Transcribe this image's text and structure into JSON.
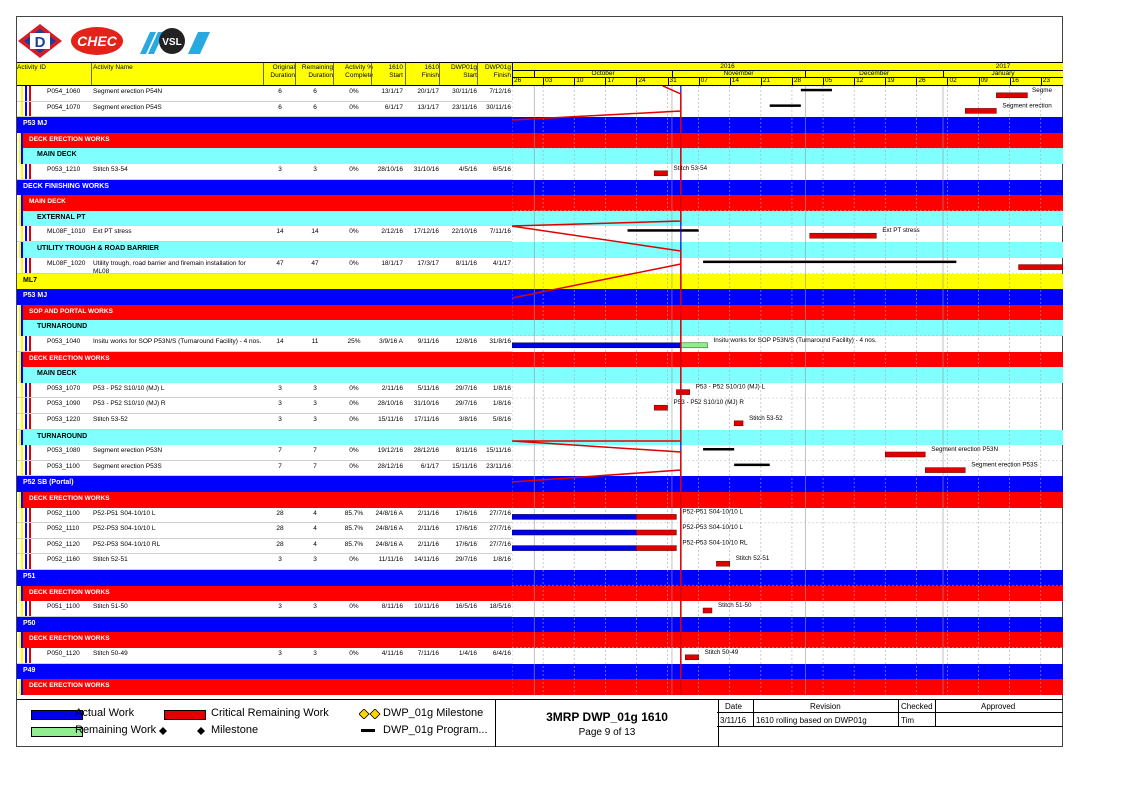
{
  "header": {
    "columns": [
      {
        "key": "id",
        "lines": [
          "Activity ID"
        ]
      },
      {
        "key": "name",
        "lines": [
          "Activity Name"
        ]
      },
      {
        "key": "od",
        "lines": [
          "Original",
          "Duration"
        ]
      },
      {
        "key": "rd",
        "lines": [
          "Remaining",
          "Duration"
        ]
      },
      {
        "key": "pc",
        "lines": [
          "Activity %",
          "Complete"
        ]
      },
      {
        "key": "s",
        "lines": [
          "1610",
          "Start"
        ]
      },
      {
        "key": "f",
        "lines": [
          "1610",
          "Finish"
        ]
      },
      {
        "key": "ds",
        "lines": [
          "DWP01g",
          "Start"
        ]
      },
      {
        "key": "df",
        "lines": [
          "DWP01g",
          "Finish"
        ]
      }
    ],
    "years": [
      "2016",
      "2017"
    ],
    "months": [
      "October",
      "November",
      "December",
      "January"
    ],
    "days": [
      "26",
      "03",
      "10",
      "17",
      "24",
      "31",
      "07",
      "14",
      "21",
      "28",
      "05",
      "12",
      "19",
      "26",
      "02",
      "09",
      "16",
      "23"
    ]
  },
  "rows": [
    {
      "type": "act",
      "id": "P054_1060",
      "name": "Segment erection P54N",
      "od": "6",
      "rd": "6",
      "pc": "0%",
      "s": "13/1/17",
      "f": "20/1/17",
      "ds": "30/11/16",
      "df": "7/12/16"
    },
    {
      "type": "act",
      "id": "P054_1070",
      "name": "Segment erection P54S",
      "od": "6",
      "rd": "6",
      "pc": "0%",
      "s": "6/1/17",
      "f": "13/1/17",
      "ds": "23/11/16",
      "df": "30/11/16"
    },
    {
      "type": "g1",
      "label": "P53 MJ"
    },
    {
      "type": "g2",
      "label": "DECK ERECTION WORKS"
    },
    {
      "type": "g3",
      "label": "MAIN DECK"
    },
    {
      "type": "act",
      "id": "P053_1210",
      "name": "Stitch 53-54",
      "od": "3",
      "rd": "3",
      "pc": "0%",
      "s": "28/10/16",
      "f": "31/10/16",
      "ds": "4/5/16",
      "df": "6/5/16"
    },
    {
      "type": "g1",
      "label": "DECK FINISHING WORKS"
    },
    {
      "type": "g2",
      "label": "MAIN DECK"
    },
    {
      "type": "g3",
      "label": "EXTERNAL PT"
    },
    {
      "type": "act",
      "id": "ML08F_1010",
      "name": "Ext PT stress",
      "od": "14",
      "rd": "14",
      "pc": "0%",
      "s": "2/12/16",
      "f": "17/12/16",
      "ds": "22/10/16",
      "df": "7/11/16"
    },
    {
      "type": "g3",
      "label": "UTILITY TROUGH & ROAD BARRIER"
    },
    {
      "type": "act",
      "id": "ML08F_1020",
      "name": "Utility trough, road barrier and firemain installation for ML08",
      "od": "47",
      "rd": "47",
      "pc": "0%",
      "s": "18/1/17",
      "f": "17/3/17",
      "ds": "8/11/16",
      "df": "4/1/17"
    },
    {
      "type": "g0",
      "label": "ML7"
    },
    {
      "type": "g1",
      "label": "P53 MJ"
    },
    {
      "type": "g2",
      "label": "SOP AND PORTAL WORKS"
    },
    {
      "type": "g3",
      "label": "TURNAROUND"
    },
    {
      "type": "act",
      "id": "P053_1040",
      "name": "Insitu works for SOP P53N/S (Turnaround Facility) - 4 nos.",
      "od": "14",
      "rd": "11",
      "pc": "25%",
      "s": "3/9/16 A",
      "f": "9/11/16",
      "ds": "12/8/16",
      "df": "31/8/16"
    },
    {
      "type": "g2",
      "label": "DECK ERECTION WORKS"
    },
    {
      "type": "g3",
      "label": "MAIN DECK"
    },
    {
      "type": "act",
      "id": "P053_1070",
      "name": "P53 - P52 S10/10 (MJ) L",
      "od": "3",
      "rd": "3",
      "pc": "0%",
      "s": "2/11/16",
      "f": "5/11/16",
      "ds": "29/7/16",
      "df": "1/8/16"
    },
    {
      "type": "act",
      "id": "P053_1090",
      "name": "P53 - P52 S10/10 (MJ) R",
      "od": "3",
      "rd": "3",
      "pc": "0%",
      "s": "28/10/16",
      "f": "31/10/16",
      "ds": "29/7/16",
      "df": "1/8/16"
    },
    {
      "type": "act",
      "id": "P053_1220",
      "name": "Stitch 53-52",
      "od": "3",
      "rd": "3",
      "pc": "0%",
      "s": "15/11/16",
      "f": "17/11/16",
      "ds": "3/8/16",
      "df": "5/8/16"
    },
    {
      "type": "g3",
      "label": "TURNAROUND"
    },
    {
      "type": "act",
      "id": "P053_1080",
      "name": "Segment erection P53N",
      "od": "7",
      "rd": "7",
      "pc": "0%",
      "s": "19/12/16",
      "f": "28/12/16",
      "ds": "8/11/16",
      "df": "15/11/16"
    },
    {
      "type": "act",
      "id": "P053_1100",
      "name": "Segment erection P53S",
      "od": "7",
      "rd": "7",
      "pc": "0%",
      "s": "28/12/16",
      "f": "6/1/17",
      "ds": "15/11/16",
      "df": "23/11/16"
    },
    {
      "type": "g1",
      "label": "P52 SB (Portal)"
    },
    {
      "type": "g2",
      "label": "DECK ERECTION WORKS"
    },
    {
      "type": "act",
      "id": "P052_1100",
      "name": "P52-P51 S04-10/10 L",
      "od": "28",
      "rd": "4",
      "pc": "85.7%",
      "s": "24/8/16 A",
      "f": "2/11/16",
      "ds": "17/6/16",
      "df": "27/7/16"
    },
    {
      "type": "act",
      "id": "P052_1110",
      "name": "P52-P53 S04-10/10 L",
      "od": "28",
      "rd": "4",
      "pc": "85.7%",
      "s": "24/8/16 A",
      "f": "2/11/16",
      "ds": "17/6/16",
      "df": "27/7/16"
    },
    {
      "type": "act",
      "id": "P052_1120",
      "name": "P52-P53 S04-10/10 RL",
      "od": "28",
      "rd": "4",
      "pc": "85.7%",
      "s": "24/8/16 A",
      "f": "2/11/16",
      "ds": "17/6/16",
      "df": "27/7/16"
    },
    {
      "type": "act",
      "id": "P052_1160",
      "name": "Stitch 52-51",
      "od": "3",
      "rd": "3",
      "pc": "0%",
      "s": "11/11/16",
      "f": "14/11/16",
      "ds": "29/7/16",
      "df": "1/8/16"
    },
    {
      "type": "g1",
      "label": "P51"
    },
    {
      "type": "g2",
      "label": "DECK ERECTION WORKS"
    },
    {
      "type": "act",
      "id": "P051_1100",
      "name": "Stitch 51-50",
      "od": "3",
      "rd": "3",
      "pc": "0%",
      "s": "8/11/16",
      "f": "10/11/16",
      "ds": "16/5/16",
      "df": "18/5/16"
    },
    {
      "type": "g1",
      "label": "P50"
    },
    {
      "type": "g2",
      "label": "DECK ERECTION WORKS"
    },
    {
      "type": "act",
      "id": "P050_1120",
      "name": "Stitch 50-49",
      "od": "3",
      "rd": "3",
      "pc": "0%",
      "s": "4/11/16",
      "f": "7/11/16",
      "ds": "1/4/16",
      "df": "6/4/16"
    },
    {
      "type": "g1",
      "label": "P49"
    },
    {
      "type": "g2",
      "label": "DECK ERECTION WORKS"
    }
  ],
  "chart_data": {
    "type": "gantt",
    "data_date": "3/11/16",
    "x_range": [
      "26/9/16",
      "28/1/17"
    ],
    "tasks": [
      {
        "id": "P054_1060",
        "label": "Segme",
        "bars": [
          {
            "kind": "critical",
            "start": "13/1/17",
            "end": "20/1/17"
          },
          {
            "kind": "program",
            "start": "30/11/16",
            "end": "7/12/16"
          }
        ]
      },
      {
        "id": "P054_1070",
        "label": "Segment erection",
        "bars": [
          {
            "kind": "critical",
            "start": "6/1/17",
            "end": "13/1/17"
          },
          {
            "kind": "program",
            "start": "23/11/16",
            "end": "30/11/16"
          }
        ]
      },
      {
        "id": "P053_1210",
        "label": "Stitch 53-54",
        "bars": [
          {
            "kind": "critical",
            "start": "28/10/16",
            "end": "31/10/16"
          }
        ]
      },
      {
        "id": "ML08F_1010",
        "label": "Ext PT stress",
        "bars": [
          {
            "kind": "critical",
            "start": "2/12/16",
            "end": "17/12/16"
          },
          {
            "kind": "program",
            "start": "22/10/16",
            "end": "7/11/16"
          }
        ]
      },
      {
        "id": "ML08F_1020",
        "label": "",
        "bars": [
          {
            "kind": "critical",
            "start": "18/1/17",
            "end": "17/3/17"
          },
          {
            "kind": "program",
            "start": "8/11/16",
            "end": "4/1/17"
          }
        ]
      },
      {
        "id": "P053_1040",
        "label": "Insitu works for SOP P53N/S (Turnaround Facility) - 4 nos.",
        "bars": [
          {
            "kind": "actual",
            "start": "26/9/16",
            "end": "3/11/16"
          },
          {
            "kind": "remaining",
            "start": "3/11/16",
            "end": "9/11/16"
          }
        ]
      },
      {
        "id": "P053_1070",
        "label": "P53 - P52 S10/10 (MJ) L",
        "bars": [
          {
            "kind": "critical",
            "start": "2/11/16",
            "end": "5/11/16"
          }
        ]
      },
      {
        "id": "P053_1090",
        "label": "P53 - P52 S10/10 (MJ) R",
        "bars": [
          {
            "kind": "critical",
            "start": "28/10/16",
            "end": "31/10/16"
          }
        ]
      },
      {
        "id": "P053_1220",
        "label": "Stitch 53-52",
        "bars": [
          {
            "kind": "critical",
            "start": "15/11/16",
            "end": "17/11/16"
          }
        ]
      },
      {
        "id": "P053_1080",
        "label": "Segment erection P53N",
        "bars": [
          {
            "kind": "critical",
            "start": "19/12/16",
            "end": "28/12/16"
          },
          {
            "kind": "program",
            "start": "8/11/16",
            "end": "15/11/16"
          }
        ]
      },
      {
        "id": "P053_1100",
        "label": "Segment erection P53S",
        "bars": [
          {
            "kind": "critical",
            "start": "28/12/16",
            "end": "6/1/17"
          },
          {
            "kind": "program",
            "start": "15/11/16",
            "end": "23/11/16"
          }
        ]
      },
      {
        "id": "P052_1100",
        "label": "P52-P51 S04-10/10 L",
        "bars": [
          {
            "kind": "actual",
            "start": "26/9/16",
            "end": "24/10/16"
          },
          {
            "kind": "critical",
            "start": "24/10/16",
            "end": "2/11/16"
          }
        ]
      },
      {
        "id": "P052_1110",
        "label": "P52-P53 S04-10/10 L",
        "bars": [
          {
            "kind": "actual",
            "start": "26/9/16",
            "end": "24/10/16"
          },
          {
            "kind": "critical",
            "start": "24/10/16",
            "end": "2/11/16"
          }
        ]
      },
      {
        "id": "P052_1120",
        "label": "P52-P53 S04-10/10 RL",
        "bars": [
          {
            "kind": "actual",
            "start": "26/9/16",
            "end": "24/10/16"
          },
          {
            "kind": "critical",
            "start": "24/10/16",
            "end": "2/11/16"
          }
        ]
      },
      {
        "id": "P052_1160",
        "label": "Stitch 52-51",
        "bars": [
          {
            "kind": "critical",
            "start": "11/11/16",
            "end": "14/11/16"
          }
        ]
      },
      {
        "id": "P051_1100",
        "label": "Stitch 51-50",
        "bars": [
          {
            "kind": "critical",
            "start": "8/11/16",
            "end": "10/11/16"
          }
        ]
      },
      {
        "id": "P050_1120",
        "label": "Stitch 50-49",
        "bars": [
          {
            "kind": "critical",
            "start": "4/11/16",
            "end": "7/11/16"
          }
        ]
      }
    ]
  },
  "legend": {
    "actual": "Actual Work",
    "critical": "Critical Remaining Work",
    "milestone_dwp": "DWP_01g Milestone",
    "remaining": "Remaining Work",
    "milestone": "Milestone",
    "program": "DWP_01g Program..."
  },
  "title_block": {
    "title": "3MRP DWP_01g 1610",
    "page": "Page 9 of 13"
  },
  "revision": {
    "headers": [
      "Date",
      "Revision",
      "Checked",
      "Approved"
    ],
    "entry": {
      "date": "3/11/16",
      "revision": "1610 rolling based on DWP01g",
      "checked": "Tim",
      "approved": ""
    }
  },
  "logos": [
    "D",
    "CHEC",
    "VSL"
  ],
  "colors": {
    "actual": "#0000e6",
    "critical": "#e00000",
    "remaining": "#90ee90",
    "program": "#000000",
    "header": "#ffff00",
    "g0": "#ffff00",
    "g1": "#0000ff",
    "g2": "#ff0000",
    "g3": "#80ffff"
  }
}
